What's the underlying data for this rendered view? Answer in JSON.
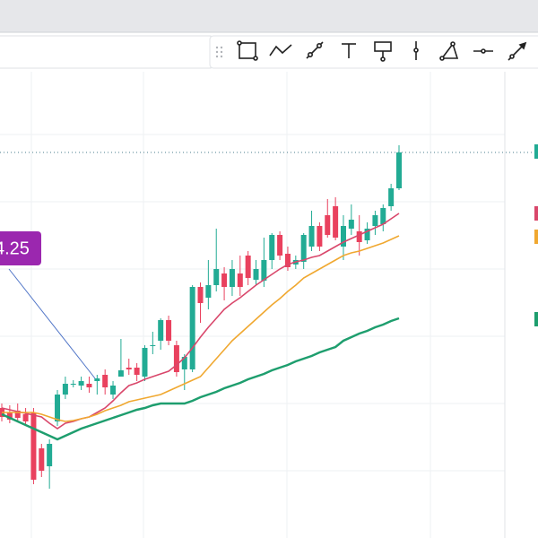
{
  "chart_data": {
    "type": "candlestick",
    "annotation": "4.25",
    "ylim": [
      0,
      600
    ],
    "up_color": "#22ab94",
    "down_color": "#e9415e",
    "open": [
      145,
      140,
      142,
      138,
      140,
      100,
      80,
      130,
      160,
      172,
      170,
      172,
      175,
      182,
      160,
      180,
      190,
      190,
      180,
      215,
      220,
      243,
      215,
      188,
      188,
      280,
      268,
      282,
      295,
      280,
      295,
      315,
      288,
      287,
      310,
      338,
      317,
      305,
      308,
      325,
      348,
      360,
      370,
      325,
      345,
      342,
      332,
      348,
      350,
      370,
      390
    ],
    "high": [
      150,
      148,
      150,
      145,
      145,
      105,
      110,
      165,
      180,
      176,
      180,
      180,
      182,
      188,
      175,
      222,
      200,
      195,
      215,
      230,
      245,
      248,
      220,
      205,
      282,
      285,
      310,
      345,
      302,
      310,
      315,
      320,
      310,
      335,
      340,
      342,
      325,
      315,
      340,
      365,
      352,
      378,
      380,
      360,
      372,
      360,
      352,
      365,
      372,
      395,
      438
    ],
    "low": [
      130,
      128,
      130,
      125,
      60,
      68,
      55,
      125,
      155,
      168,
      165,
      162,
      160,
      160,
      155,
      180,
      182,
      175,
      175,
      205,
      210,
      215,
      180,
      165,
      185,
      240,
      255,
      275,
      265,
      270,
      270,
      282,
      282,
      280,
      300,
      310,
      298,
      300,
      300,
      320,
      320,
      335,
      332,
      310,
      338,
      315,
      328,
      338,
      342,
      365,
      388
    ],
    "close": [
      135,
      132,
      134,
      130,
      65,
      75,
      105,
      160,
      172,
      172,
      175,
      168,
      178,
      168,
      170,
      187,
      188,
      182,
      212,
      215,
      243,
      220,
      185,
      202,
      280,
      262,
      282,
      300,
      280,
      300,
      280,
      290,
      300,
      310,
      338,
      315,
      302,
      310,
      338,
      348,
      325,
      338,
      335,
      348,
      355,
      330,
      345,
      360,
      368,
      390,
      430
    ],
    "lines": [
      {
        "color": "#d9476b",
        "values": [
          145,
          143,
          141,
          139,
          137,
          135,
          128,
          122,
          128,
          130,
          133,
          135,
          140,
          145,
          153,
          162,
          170,
          173,
          177,
          180,
          183,
          186,
          193,
          201,
          212,
          224,
          235,
          245,
          255,
          262,
          268,
          275,
          282,
          288,
          294,
          300,
          305,
          308,
          310,
          313,
          315,
          320,
          325,
          330,
          334,
          338,
          342,
          346,
          350,
          356,
          362
        ]
      },
      {
        "color": "#f0a830",
        "values": [
          140,
          140,
          140,
          140,
          140,
          138,
          135,
          132,
          130,
          131,
          133,
          135,
          138,
          142,
          145,
          148,
          152,
          154,
          156,
          158,
          160,
          164,
          168,
          172,
          176,
          180,
          190,
          200,
          210,
          220,
          228,
          236,
          244,
          252,
          260,
          267,
          275,
          282,
          290,
          295,
          300,
          305,
          310,
          315,
          318,
          320,
          323,
          326,
          329,
          333,
          337
        ]
      },
      {
        "color": "#1e9e6e",
        "values": [
          138,
          134,
          130,
          126,
          122,
          118,
          114,
          110,
          114,
          118,
          122,
          125,
          128,
          131,
          134,
          137,
          140,
          143,
          145,
          148,
          150,
          150,
          150,
          150,
          153,
          157,
          160,
          163,
          167,
          170,
          173,
          177,
          180,
          183,
          187,
          190,
          193,
          197,
          200,
          203,
          207,
          210,
          213,
          220,
          224,
          228,
          231,
          235,
          238,
          242,
          245
        ]
      }
    ]
  }
}
